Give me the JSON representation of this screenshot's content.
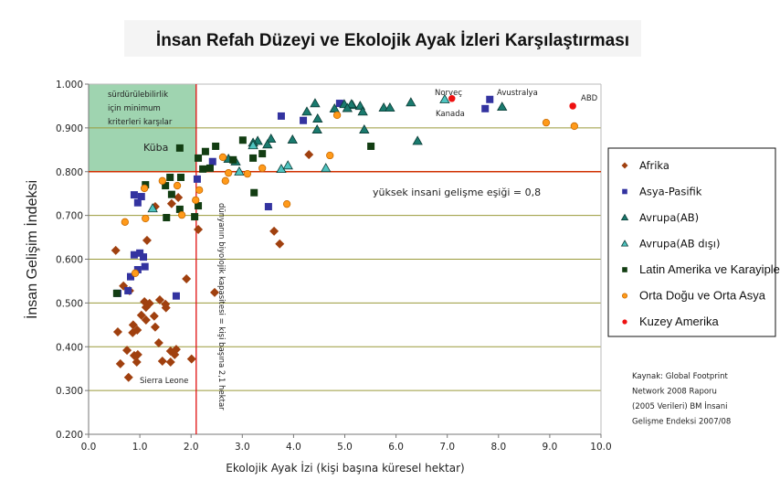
{
  "chart_data": {
    "type": "scatter",
    "title": "İnsan Refah Düzeyi ve Ekolojik Ayak İzleri Karşılaştırması",
    "xlabel": "Ekolojik Ayak İzi (kişi başına küresel hektar)",
    "ylabel": "İnsan Gelişim İndeksi",
    "xlim": [
      0,
      10
    ],
    "ylim": [
      0.2,
      1.0
    ],
    "xticks": [
      "0.0",
      "1.0",
      "2.0",
      "3.0",
      "4.0",
      "5.0",
      "6.0",
      "7.0",
      "8.0",
      "9.0",
      "10.0"
    ],
    "yticks": [
      "0.200",
      "0.300",
      "0.400",
      "0.500",
      "0.600",
      "0.700",
      "0.800",
      "0.900",
      "1.000"
    ],
    "grid": "horizontal",
    "legend_position": "right",
    "series": [
      {
        "name": "Afrika",
        "color": "#a0400f",
        "marker": "diamond",
        "points": [
          [
            0.53,
            0.62
          ],
          [
            1.14,
            0.643
          ],
          [
            0.68,
            0.539
          ],
          [
            0.8,
            0.528
          ],
          [
            0.57,
            0.434
          ],
          [
            0.86,
            0.432
          ],
          [
            1.12,
            0.49
          ],
          [
            1.09,
            0.503
          ],
          [
            1.19,
            0.499
          ],
          [
            1.03,
            0.472
          ],
          [
            1.28,
            0.47
          ],
          [
            1.39,
            0.507
          ],
          [
            1.5,
            0.497
          ],
          [
            1.51,
            0.489
          ],
          [
            1.3,
            0.445
          ],
          [
            1.37,
            0.409
          ],
          [
            1.12,
            0.461
          ],
          [
            0.95,
            0.438
          ],
          [
            0.87,
            0.45
          ],
          [
            0.75,
            0.392
          ],
          [
            0.89,
            0.38
          ],
          [
            0.96,
            0.382
          ],
          [
            0.94,
            0.365
          ],
          [
            0.62,
            0.361
          ],
          [
            0.78,
            0.33
          ],
          [
            1.6,
            0.39
          ],
          [
            1.71,
            0.394
          ],
          [
            1.68,
            0.382
          ],
          [
            1.44,
            0.367
          ],
          [
            1.6,
            0.365
          ],
          [
            2.01,
            0.372
          ],
          [
            1.91,
            0.555
          ],
          [
            2.46,
            0.524
          ],
          [
            2.14,
            0.668
          ],
          [
            3.62,
            0.664
          ],
          [
            3.73,
            0.635
          ],
          [
            1.62,
            0.727
          ],
          [
            1.75,
            0.741
          ],
          [
            1.3,
            0.72
          ],
          [
            4.3,
            0.839
          ]
        ]
      },
      {
        "name": "Asya-Pasifik",
        "color": "#3333a0",
        "marker": "square",
        "points": [
          [
            0.89,
            0.747
          ],
          [
            1.03,
            0.743
          ],
          [
            0.96,
            0.729
          ],
          [
            2.12,
            0.783
          ],
          [
            2.42,
            0.823
          ],
          [
            3.51,
            0.72
          ],
          [
            3.76,
            0.927
          ],
          [
            4.19,
            0.917
          ],
          [
            4.9,
            0.956
          ],
          [
            0.89,
            0.61
          ],
          [
            1.0,
            0.614
          ],
          [
            1.07,
            0.605
          ],
          [
            1.1,
            0.583
          ],
          [
            0.96,
            0.576
          ],
          [
            0.82,
            0.56
          ],
          [
            0.77,
            0.528
          ],
          [
            0.57,
            0.522
          ],
          [
            1.71,
            0.516
          ],
          [
            7.83,
            0.965
          ],
          [
            7.74,
            0.944
          ]
        ]
      },
      {
        "name": "Avrupa(AB)",
        "color": "#1a7a6e",
        "marker": "triangle",
        "points": [
          [
            5.15,
            0.952
          ],
          [
            5.3,
            0.95
          ],
          [
            5.35,
            0.937
          ],
          [
            5.76,
            0.946
          ],
          [
            5.88,
            0.946
          ],
          [
            6.29,
            0.958
          ],
          [
            5.38,
            0.896
          ],
          [
            6.42,
            0.87
          ],
          [
            8.07,
            0.948
          ],
          [
            4.42,
            0.956
          ],
          [
            4.26,
            0.937
          ],
          [
            4.47,
            0.921
          ],
          [
            4.46,
            0.896
          ],
          [
            3.98,
            0.873
          ],
          [
            3.56,
            0.875
          ],
          [
            3.3,
            0.87
          ],
          [
            3.21,
            0.866
          ],
          [
            3.49,
            0.862
          ],
          [
            2.87,
            0.823
          ],
          [
            2.73,
            0.829
          ],
          [
            4.8,
            0.944
          ],
          [
            4.99,
            0.954
          ],
          [
            5.13,
            0.954
          ],
          [
            5.05,
            0.945
          ]
        ]
      },
      {
        "name": "Avrupa(AB dışı)",
        "color": "#4fc4c0",
        "marker": "triangle",
        "points": [
          [
            1.25,
            0.716
          ],
          [
            2.94,
            0.8
          ],
          [
            3.21,
            0.86
          ],
          [
            3.76,
            0.806
          ],
          [
            3.89,
            0.814
          ],
          [
            4.63,
            0.808
          ],
          [
            6.95,
            0.965
          ]
        ]
      },
      {
        "name": "Latin Amerika ve Karayipler",
        "color": "#123d12",
        "marker": "square",
        "points": [
          [
            1.78,
            0.854
          ],
          [
            3.01,
            0.872
          ],
          [
            2.48,
            0.858
          ],
          [
            2.28,
            0.846
          ],
          [
            2.14,
            0.831
          ],
          [
            2.23,
            0.806
          ],
          [
            2.37,
            0.808
          ],
          [
            3.21,
            0.831
          ],
          [
            3.39,
            0.841
          ],
          [
            2.82,
            0.827
          ],
          [
            1.59,
            0.787
          ],
          [
            1.8,
            0.787
          ],
          [
            1.11,
            0.77
          ],
          [
            1.5,
            0.768
          ],
          [
            1.62,
            0.748
          ],
          [
            3.23,
            0.752
          ],
          [
            1.78,
            0.714
          ],
          [
            2.14,
            0.722
          ],
          [
            1.52,
            0.695
          ],
          [
            2.07,
            0.697
          ],
          [
            5.51,
            0.858
          ],
          [
            0.55,
            0.522
          ]
        ]
      },
      {
        "name": "Orta Doğu ve Orta Asya",
        "color": "#ff9a1a",
        "marker": "circle",
        "points": [
          [
            1.09,
            0.762
          ],
          [
            1.44,
            0.779
          ],
          [
            1.73,
            0.768
          ],
          [
            2.16,
            0.758
          ],
          [
            2.09,
            0.735
          ],
          [
            1.82,
            0.701
          ],
          [
            1.11,
            0.693
          ],
          [
            0.71,
            0.685
          ],
          [
            2.62,
            0.833
          ],
          [
            2.73,
            0.797
          ],
          [
            2.67,
            0.779
          ],
          [
            3.1,
            0.795
          ],
          [
            3.39,
            0.808
          ],
          [
            3.87,
            0.726
          ],
          [
            4.71,
            0.837
          ],
          [
            4.85,
            0.929
          ],
          [
            0.91,
            0.568
          ],
          [
            8.93,
            0.912
          ],
          [
            9.48,
            0.904
          ]
        ]
      },
      {
        "name": "Kuzey Amerika",
        "color": "#ee1111",
        "marker": "circle",
        "points": [
          [
            7.09,
            0.967
          ],
          [
            9.45,
            0.95
          ]
        ]
      }
    ],
    "annotations": {
      "box_text": [
        "sürdürülebilirlik",
        "için minimum",
        "kriterleri karşılar"
      ],
      "kuba": "Küba",
      "norvec": "Norveç",
      "kanada": "Kanada",
      "avustralya": "Avustralya",
      "abd": "ABD",
      "sierra_leone": "Sierra Leone",
      "threshold_label": "yüksek insani gelişme eşiği = 0,8",
      "threshold_value": 0.8,
      "biocapacity_label": "dünyanın biyolojik kapasitesi = kişi başına 2,1 hektar",
      "biocapacity_value": 2.1
    },
    "source": [
      "Kaynak: Global Footprint",
      "Network 2008 Raporu",
      "(2005 Verileri) BM İnsani",
      "Gelişme Endeksi 2007/08"
    ],
    "colors": {
      "box_fill": "#9fd4b0",
      "threshold_line": "#d03000",
      "bio_line": "#e01010",
      "grid": "#9a9a3a"
    }
  }
}
